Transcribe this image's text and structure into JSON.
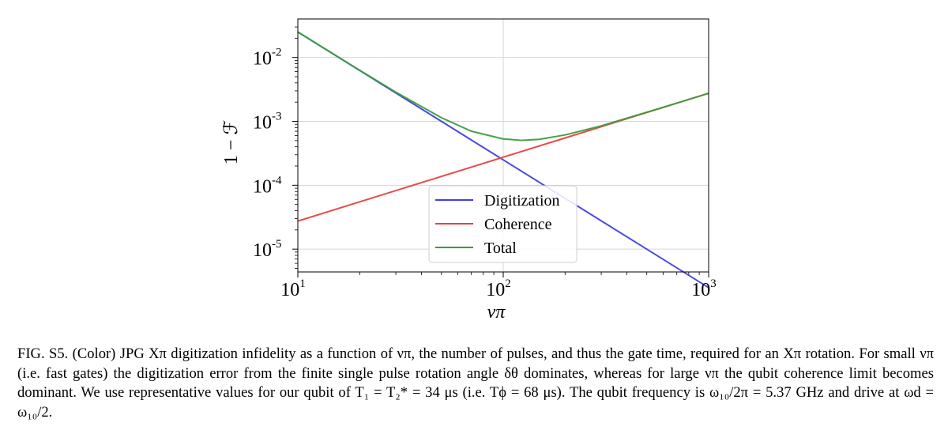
{
  "chart_data": {
    "type": "line",
    "xscale": "log",
    "yscale": "log",
    "xlim": [
      10,
      1000
    ],
    "ylim": [
      4.4e-06,
      0.04
    ],
    "xlabel": "νπ",
    "ylabel": "1 − ℱ",
    "xticks": [
      {
        "value": 10,
        "base": "10",
        "exp": "1"
      },
      {
        "value": 100,
        "base": "10",
        "exp": "2"
      },
      {
        "value": 1000,
        "base": "10",
        "exp": "3"
      }
    ],
    "yticks": [
      {
        "value": 1e-05,
        "base": "10",
        "exp": "-5"
      },
      {
        "value": 0.0001,
        "base": "10",
        "exp": "-4"
      },
      {
        "value": 0.001,
        "base": "10",
        "exp": "-3"
      },
      {
        "value": 0.01,
        "base": "10",
        "exp": "-2"
      }
    ],
    "grid": true,
    "legend_position": "lower-center",
    "series": [
      {
        "name": "Digitization",
        "color": "#4040e0",
        "x": [
          10,
          20,
          50,
          100,
          200,
          500,
          1000
        ],
        "y": [
          0.025,
          0.00625,
          0.001,
          0.00025,
          6.25e-05,
          1e-05,
          2.5e-06
        ]
      },
      {
        "name": "Coherence",
        "color": "#e84040",
        "x": [
          10,
          20,
          50,
          100,
          200,
          500,
          1000
        ],
        "y": [
          2.75e-05,
          5.5e-05,
          0.0001375,
          0.000275,
          0.00055,
          0.001375,
          0.00275
        ]
      },
      {
        "name": "Total",
        "color": "#3c9c3c",
        "x": [
          10,
          20,
          30,
          50,
          70,
          100,
          124,
          150,
          200,
          300,
          500,
          700,
          1000
        ],
        "y": [
          0.025,
          0.0063,
          0.00286,
          0.00114,
          0.0007,
          0.00053,
          0.000504,
          0.000523,
          0.000613,
          0.00085,
          0.00139,
          0.00193,
          0.00275
        ]
      }
    ]
  },
  "caption": "FIG. S5. (Color) JPG Xπ digitization infidelity as a function of νπ, the number of pulses, and thus the gate time, required for an Xπ rotation. For small νπ (i.e. fast gates) the digitization error from the finite single pulse rotation angle δθ dominates, whereas for large νπ the qubit coherence limit becomes dominant. We use representative values for our qubit of T₁ = T₂* = 34 μs (i.e. Tϕ = 68 μs). The qubit frequency is ω₁₀/2π = 5.37 GHz and drive at ωd = ω₁₀/2."
}
